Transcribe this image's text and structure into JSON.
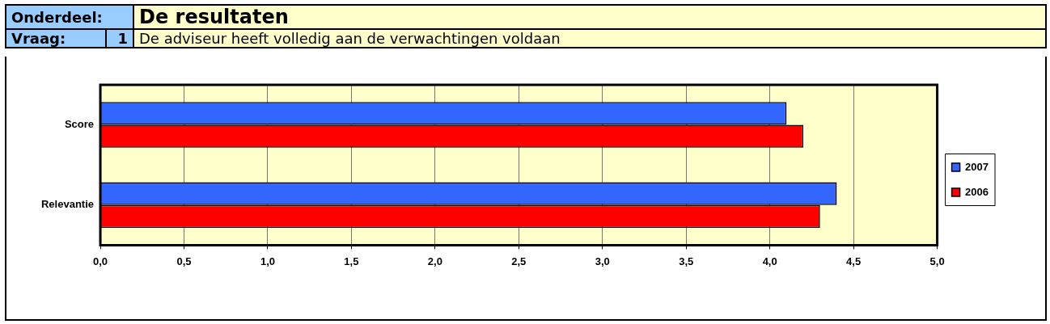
{
  "chart_data": {
    "type": "bar",
    "orientation": "horizontal",
    "title": "De resultaten",
    "subtitle": "De adviseur heeft volledig aan de verwachtingen voldaan",
    "annotations": [
      "Onderdeel:",
      "Vraag:",
      "1"
    ],
    "categories": [
      "Score",
      "Relevantie"
    ],
    "series": [
      {
        "name": "2007",
        "color": "#3366ff",
        "values": [
          4.1,
          4.4
        ]
      },
      {
        "name": "2006",
        "color": "#ff0000",
        "values": [
          4.2,
          4.3
        ]
      }
    ],
    "xlim": [
      0,
      5
    ],
    "xticks": [
      {
        "value": 0,
        "label": "0,0"
      },
      {
        "value": 0.5,
        "label": "0,5"
      },
      {
        "value": 1,
        "label": "1,0"
      },
      {
        "value": 1.5,
        "label": "1,5"
      },
      {
        "value": 2,
        "label": "2,0"
      },
      {
        "value": 2.5,
        "label": "2,5"
      },
      {
        "value": 3,
        "label": "3,0"
      },
      {
        "value": 3.5,
        "label": "3,5"
      },
      {
        "value": 4,
        "label": "4,0"
      },
      {
        "value": 4.5,
        "label": "4,5"
      },
      {
        "value": 5,
        "label": "5,0"
      }
    ],
    "grid": "x",
    "legend": "right"
  }
}
